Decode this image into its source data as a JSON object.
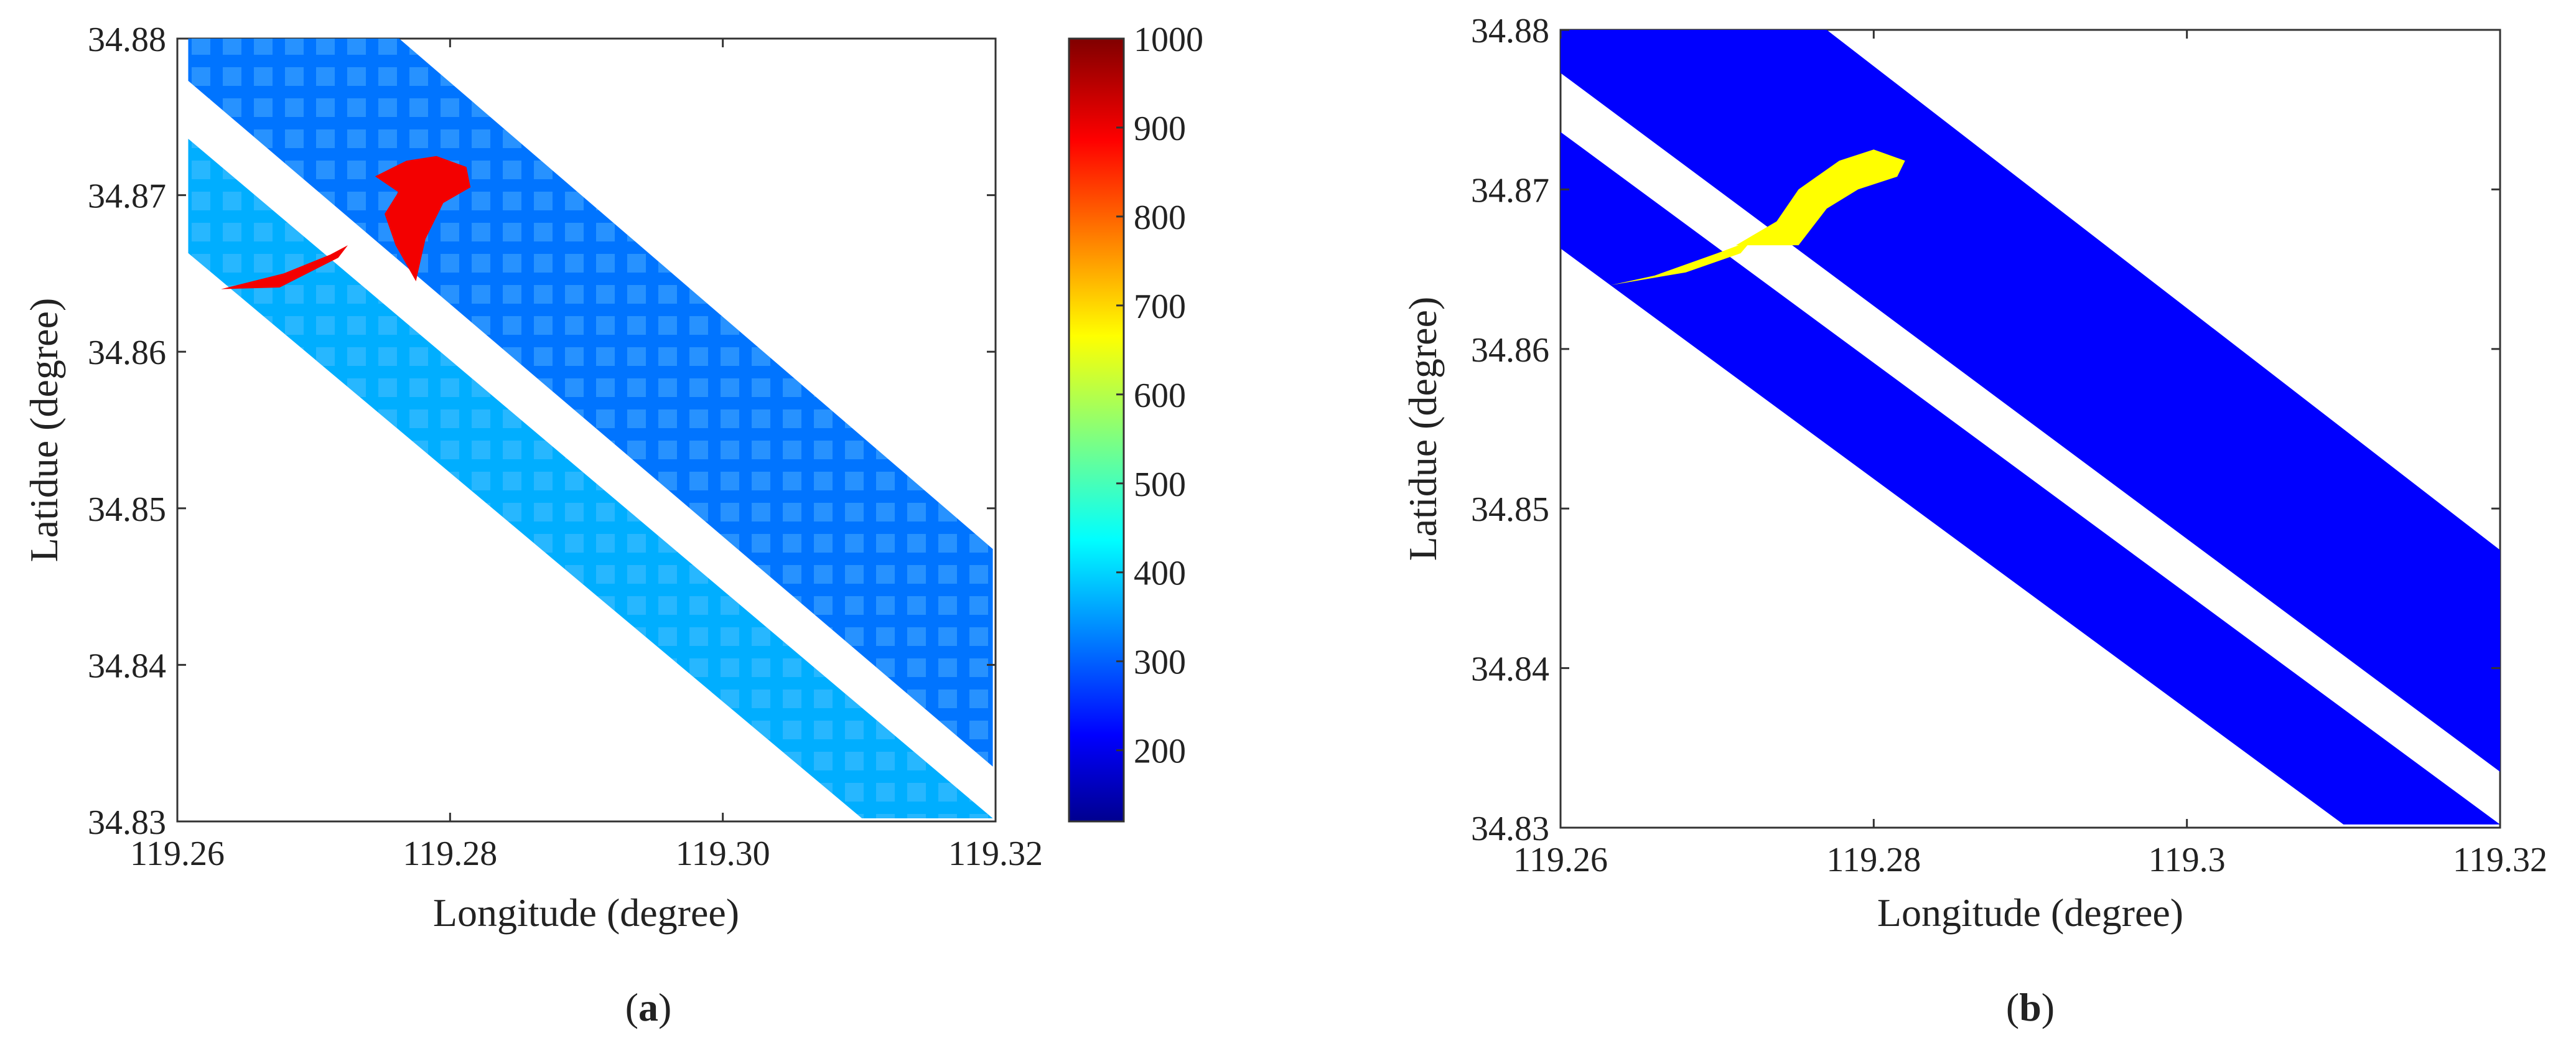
{
  "panels": [
    {
      "label_open": "(",
      "label_letter": "a",
      "label_close": ")"
    },
    {
      "label_open": "(",
      "label_letter": "b",
      "label_close": ")"
    }
  ],
  "chart_data": [
    {
      "type": "heatmap",
      "xlabel": "Longitude (degree)",
      "ylabel": "Latidue (degree)",
      "xlim": [
        119.26,
        119.32
      ],
      "ylim": [
        34.83,
        34.88
      ],
      "xticks": [
        119.26,
        119.28,
        119.3,
        119.32
      ],
      "xtick_labels": [
        "119.26",
        "119.28",
        "119.30",
        "119.32"
      ],
      "yticks": [
        34.83,
        34.84,
        34.85,
        34.86,
        34.87,
        34.88
      ],
      "ytick_labels": [
        "34.83",
        "34.84",
        "34.85",
        "34.86",
        "34.87",
        "34.88"
      ],
      "colormap": "jet",
      "colorbar": {
        "range": [
          120,
          1000
        ],
        "ticks": [
          200,
          300,
          400,
          500,
          600,
          700,
          800,
          900,
          1000
        ],
        "tick_labels": [
          "200",
          "300",
          "400",
          "500",
          "600",
          "700",
          "800",
          "900",
          "1000"
        ]
      },
      "swaths": [
        {
          "name": "upper",
          "corners": [
            [
              119.2608,
              34.8802
            ],
            [
              119.276,
              34.8802
            ],
            [
              119.3198,
              34.8474
            ],
            [
              119.3198,
              34.8335
            ],
            [
              119.2608,
              34.8773
            ]
          ],
          "fill_value": 330
        },
        {
          "name": "lower",
          "corners": [
            [
              119.2608,
              34.8736
            ],
            [
              119.3198,
              34.8302
            ],
            [
              119.3198,
              34.8302
            ],
            [
              119.3102,
              34.8302
            ],
            [
              119.2608,
              34.8663
            ]
          ],
          "fill_value": 380
        }
      ],
      "high_region": {
        "value": 900,
        "shape": [
          [
            119.2775,
            34.8645
          ],
          [
            119.276,
            34.8668
          ],
          [
            119.2752,
            34.8688
          ],
          [
            119.2762,
            34.8702
          ],
          [
            119.2745,
            34.8712
          ],
          [
            119.2768,
            34.8722
          ],
          [
            119.279,
            34.8725
          ],
          [
            119.2812,
            34.8718
          ],
          [
            119.2815,
            34.8705
          ],
          [
            119.2795,
            34.8695
          ],
          [
            119.2782,
            34.8672
          ],
          [
            119.2775,
            34.8645
          ]
        ]
      },
      "high_streak": {
        "value": 900,
        "shape": [
          [
            119.2632,
            34.864
          ],
          [
            119.2678,
            34.865
          ],
          [
            119.2712,
            34.8662
          ],
          [
            119.2725,
            34.8668
          ],
          [
            119.2718,
            34.866
          ],
          [
            119.2675,
            34.8641
          ],
          [
            119.2632,
            34.864
          ]
        ]
      }
    },
    {
      "type": "heatmap",
      "xlabel": "Longitude (degree)",
      "ylabel": "Latidue (degree)",
      "xlim": [
        119.26,
        119.32
      ],
      "ylim": [
        34.83,
        34.88
      ],
      "xticks": [
        119.26,
        119.28,
        119.3,
        119.32
      ],
      "xtick_labels": [
        "119.26",
        "119.28",
        "119.3",
        "119.32"
      ],
      "yticks": [
        34.83,
        34.84,
        34.85,
        34.86,
        34.87,
        34.88
      ],
      "ytick_labels": [
        "34.83",
        "34.84",
        "34.85",
        "34.86",
        "34.87",
        "34.88"
      ],
      "colors": {
        "background_class": "#0000ff",
        "target_class": "#ffff00"
      },
      "swaths": [
        {
          "name": "upper",
          "corners": [
            [
              119.26,
              34.88
            ],
            [
              119.277,
              34.88
            ],
            [
              119.32,
              34.8474
            ],
            [
              119.32,
              34.8335
            ],
            [
              119.26,
              34.8773
            ]
          ]
        },
        {
          "name": "lower",
          "corners": [
            [
              119.26,
              34.8736
            ],
            [
              119.32,
              34.8302
            ],
            [
              119.31,
              34.8302
            ],
            [
              119.26,
              34.8663
            ]
          ]
        }
      ],
      "target_region": {
        "shape": [
          [
            119.2712,
            34.8665
          ],
          [
            119.2738,
            34.868
          ],
          [
            119.2752,
            34.87
          ],
          [
            119.2778,
            34.8718
          ],
          [
            119.28,
            34.8725
          ],
          [
            119.282,
            34.8718
          ],
          [
            119.2815,
            34.8708
          ],
          [
            119.279,
            34.87
          ],
          [
            119.277,
            34.8688
          ],
          [
            119.2752,
            34.8665
          ]
        ]
      },
      "target_streak": {
        "shape": [
          [
            119.2632,
            34.864
          ],
          [
            119.268,
            34.8648
          ],
          [
            119.2715,
            34.866
          ],
          [
            119.2722,
            34.8668
          ],
          [
            119.27,
            34.866
          ],
          [
            119.266,
            34.8646
          ],
          [
            119.2632,
            34.864
          ]
        ]
      }
    }
  ]
}
